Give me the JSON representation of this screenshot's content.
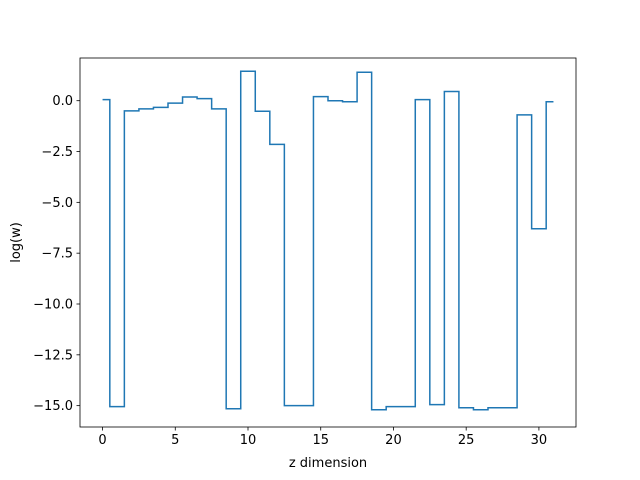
{
  "chart_data": {
    "type": "line",
    "drawstyle": "steps-mid",
    "title": "",
    "xlabel": "z dimension",
    "ylabel": "log(w)",
    "xlim": [
      -1.55,
      32.55
    ],
    "ylim": [
      -16.05,
      2.1
    ],
    "xticks": [
      0,
      5,
      10,
      15,
      20,
      25,
      30
    ],
    "yticks": [
      0.0,
      -2.5,
      -5.0,
      -7.5,
      -10.0,
      -12.5,
      -15.0
    ],
    "xtick_labels": [
      "0",
      "5",
      "10",
      "15",
      "20",
      "25",
      "30"
    ],
    "ytick_labels": [
      "0.0",
      "−2.5",
      "−5.0",
      "−7.5",
      "−10.0",
      "−12.5",
      "−15.0"
    ],
    "grid": false,
    "line_color": "#1f77b4",
    "series": [
      {
        "x": [
          0,
          1,
          2,
          3,
          4,
          5,
          6,
          7,
          8,
          9,
          10,
          11,
          12,
          13,
          14,
          15,
          16,
          17,
          18,
          19,
          20,
          21,
          22,
          23,
          24,
          25,
          26,
          27,
          28,
          29,
          30,
          31
        ],
        "y": [
          0.05,
          -15.05,
          -0.5,
          -0.4,
          -0.33,
          -0.12,
          0.18,
          0.1,
          -0.4,
          -15.15,
          1.45,
          -0.52,
          -2.15,
          -15.0,
          -15.0,
          0.2,
          0.0,
          -0.05,
          1.4,
          -15.2,
          -15.05,
          -15.05,
          0.05,
          -14.95,
          0.45,
          -15.1,
          -15.2,
          -15.1,
          -15.1,
          -0.7,
          -6.3,
          -0.05
        ]
      }
    ]
  }
}
